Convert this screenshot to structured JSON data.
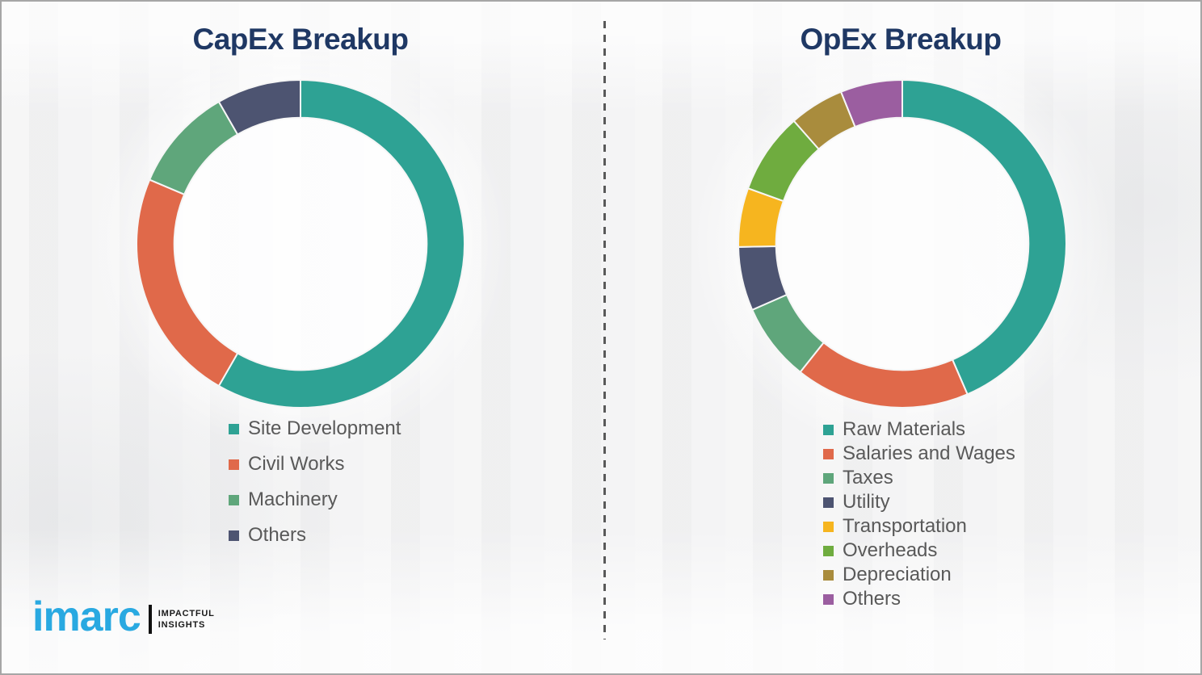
{
  "theme": {
    "title_color": "#1F3864",
    "legend_text_color": "#595959",
    "divider_color": "#595959",
    "border_color": "#A6A6A6",
    "background_color": "#F2F2F3"
  },
  "chart_data": [
    {
      "type": "pie",
      "subtype": "donut",
      "title": "CapEx Breakup",
      "labels": [
        "Site Development",
        "Civil Works",
        "Machinery",
        "Others"
      ],
      "values": [
        58.3,
        23.1,
        10.3,
        8.3
      ],
      "colors": [
        "#2EA294",
        "#E0694A",
        "#5FA67B",
        "#4D5471"
      ],
      "start_angle_deg": 0,
      "direction": "clockwise",
      "inner_radius_ratio": 0.77,
      "segment_gap_color": "#F6F6F6",
      "legend_position": "bottom-left",
      "data_labels": "none"
    },
    {
      "type": "pie",
      "subtype": "donut",
      "title": "OpEx Breakup",
      "labels": [
        "Raw Materials",
        "Salaries and Wages",
        "Taxes",
        "Utility",
        "Transportation",
        "Overheads",
        "Depreciation",
        "Others"
      ],
      "values": [
        43.5,
        17.2,
        7.7,
        6.3,
        5.8,
        8.0,
        5.4,
        6.1
      ],
      "colors": [
        "#2EA294",
        "#E0694A",
        "#5FA67B",
        "#4D5471",
        "#F6B51F",
        "#6FAC3F",
        "#A98C3D",
        "#9B5EA0"
      ],
      "start_angle_deg": 0,
      "direction": "clockwise",
      "inner_radius_ratio": 0.77,
      "segment_gap_color": "#F6F6F6",
      "legend_position": "bottom-left",
      "data_labels": "none"
    }
  ],
  "logo": {
    "brand": "imarc",
    "brand_color": "#29A9E1",
    "tagline_line1": "IMPACTFUL",
    "tagline_line2": "INSIGHTS"
  }
}
